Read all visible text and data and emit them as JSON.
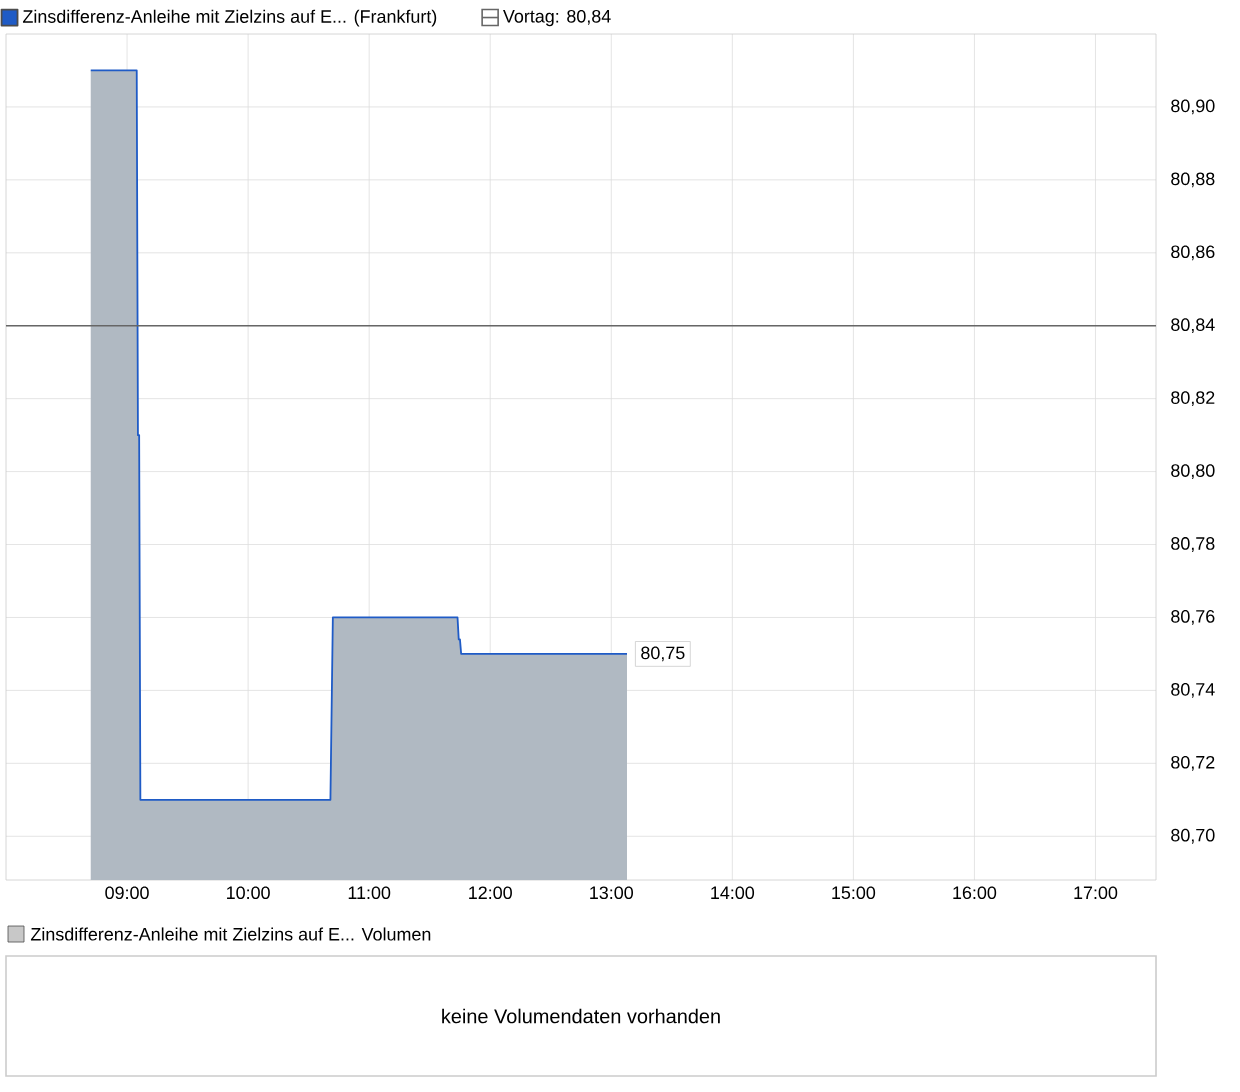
{
  "chart_data": [
    {
      "type": "area",
      "legend": "top left",
      "grid": true,
      "series": [
        {
          "name": "Zinsdifferenz-Anleihe mit Zielzins auf E... (Frankfurt)",
          "color": "#1f5bc6",
          "x": [
            8.7,
            9.08,
            9.09,
            9.1,
            9.11,
            10.68,
            10.69,
            10.7,
            11.73,
            11.74,
            11.75,
            11.76,
            13.13
          ],
          "values": [
            80.91,
            80.91,
            80.81,
            80.81,
            80.71,
            80.71,
            80.735,
            80.76,
            80.76,
            80.754,
            80.754,
            80.75,
            80.75
          ],
          "value_labels": [
            null,
            null,
            null,
            null,
            null,
            null,
            null,
            null,
            null,
            null,
            null,
            null,
            "80,75"
          ]
        }
      ],
      "xlim": [
        8.0,
        17.5
      ],
      "xticks": [
        {
          "value": 9,
          "label": "09:00"
        },
        {
          "value": 10,
          "label": "10:00"
        },
        {
          "value": 11,
          "label": "11:00"
        },
        {
          "value": 12,
          "label": "12:00"
        },
        {
          "value": 13,
          "label": "13:00"
        },
        {
          "value": 14,
          "label": "14:00"
        },
        {
          "value": 15,
          "label": "15:00"
        },
        {
          "value": 16,
          "label": "16:00"
        },
        {
          "value": 17,
          "label": "17:00"
        }
      ],
      "ylim": [
        80.688,
        80.92
      ],
      "yticks": [
        {
          "value": 80.7,
          "label": "80,70"
        },
        {
          "value": 80.72,
          "label": "80,72"
        },
        {
          "value": 80.74,
          "label": "80,74"
        },
        {
          "value": 80.76,
          "label": "80,76"
        },
        {
          "value": 80.78,
          "label": "80,78"
        },
        {
          "value": 80.8,
          "label": "80,80"
        },
        {
          "value": 80.82,
          "label": "80,82"
        },
        {
          "value": 80.84,
          "label": "80,84"
        },
        {
          "value": 80.86,
          "label": "80,86"
        },
        {
          "value": 80.88,
          "label": "80,88"
        },
        {
          "value": 80.9,
          "label": "80,90"
        }
      ],
      "ref_lines": [
        {
          "axis": "y",
          "value": 80.84,
          "label": "Vortag: 80,84",
          "color": "#666666"
        }
      ]
    },
    {
      "type": "other",
      "title": "Zinsdifferenz-Anleihe mit Zielzins auf E... Volumen",
      "annotations": [
        "keine Volumendaten vorhanden"
      ]
    }
  ]
}
